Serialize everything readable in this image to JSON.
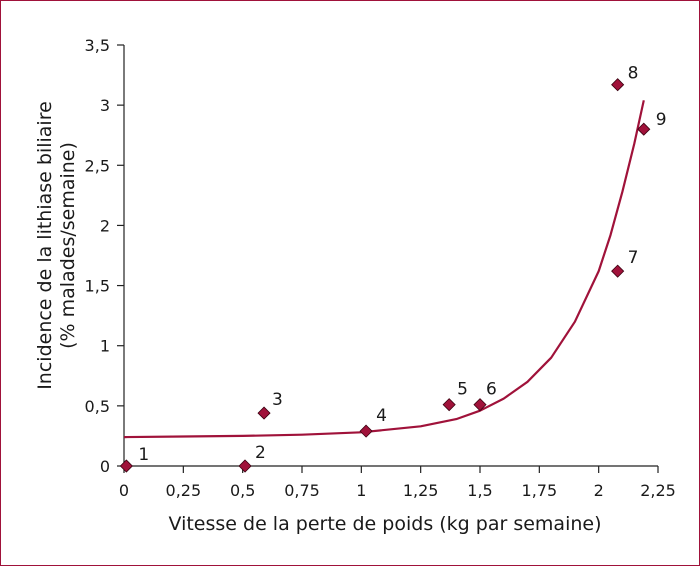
{
  "chart_data": {
    "type": "scatter",
    "title": "",
    "xlabel": "Vitesse de la perte de poids (kg par semaine)",
    "ylabel_lines": [
      "Incidence de la lithiase biliaire",
      "(% malades/semaine)"
    ],
    "xlim": [
      0,
      2.25
    ],
    "ylim": [
      0,
      3.5
    ],
    "x_ticks": [
      0,
      0.25,
      0.5,
      0.75,
      1,
      1.25,
      1.5,
      1.75,
      2,
      2.25
    ],
    "x_tick_labels": [
      "0",
      "0,25",
      "0,5",
      "0,75",
      "1",
      "1,25",
      "1,5",
      "1,75",
      "2",
      "2,25"
    ],
    "y_ticks": [
      0,
      0.5,
      1,
      1.5,
      2,
      2.5,
      3,
      3.5
    ],
    "y_tick_labels": [
      "0",
      "0,5",
      "1",
      "1,5",
      "2",
      "2,5",
      "3",
      "3,5"
    ],
    "grid": false,
    "legend": "none",
    "marker_color": "#a0123a",
    "curve_color": "#a0123a",
    "points": [
      {
        "label": "1",
        "x": 0.01,
        "y": 0.0
      },
      {
        "label": "2",
        "x": 0.51,
        "y": 0.0
      },
      {
        "label": "3",
        "x": 0.59,
        "y": 0.44
      },
      {
        "label": "4",
        "x": 1.02,
        "y": 0.29
      },
      {
        "label": "5",
        "x": 1.37,
        "y": 0.51
      },
      {
        "label": "6",
        "x": 1.5,
        "y": 0.51
      },
      {
        "label": "7",
        "x": 2.08,
        "y": 1.62
      },
      {
        "label": "8",
        "x": 2.08,
        "y": 3.17
      },
      {
        "label": "9",
        "x": 2.19,
        "y": 2.8
      }
    ],
    "fit_curve": {
      "type": "exponential",
      "x": [
        0,
        0.25,
        0.5,
        0.75,
        1.0,
        1.25,
        1.4,
        1.5,
        1.6,
        1.7,
        1.8,
        1.9,
        2.0,
        2.05,
        2.1,
        2.15,
        2.19
      ],
      "y": [
        0.24,
        0.245,
        0.25,
        0.26,
        0.28,
        0.33,
        0.39,
        0.46,
        0.56,
        0.7,
        0.9,
        1.2,
        1.62,
        1.92,
        2.28,
        2.68,
        3.04
      ]
    }
  }
}
